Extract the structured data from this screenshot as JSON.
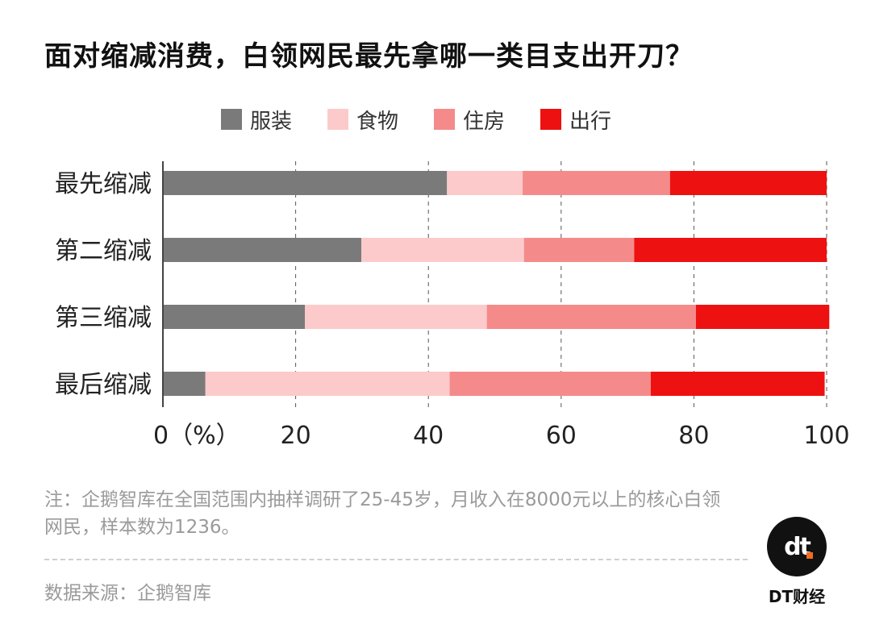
{
  "title": "面对缩减消费，白领网民最先拿哪一类目支出开刀？",
  "legend": [
    {
      "label": "服装",
      "color": "#7a7a7a"
    },
    {
      "label": "食物",
      "color": "#fccaca"
    },
    {
      "label": "住房",
      "color": "#f58a8a"
    },
    {
      "label": "出行",
      "color": "#ee1111"
    }
  ],
  "chart_data": {
    "type": "bar",
    "orientation": "horizontal",
    "stacked": true,
    "categories": [
      "最先缩减",
      "第二缩减",
      "第三缩减",
      "最后缩减"
    ],
    "series": [
      {
        "name": "服装",
        "color": "#7a7a7a",
        "values": [
          42.8,
          29.9,
          21.4,
          6.4
        ]
      },
      {
        "name": "食物",
        "color": "#fccaca",
        "values": [
          11.4,
          24.5,
          27.4,
          36.8
        ]
      },
      {
        "name": "住房",
        "color": "#f58a8a",
        "values": [
          22.2,
          16.6,
          31.5,
          30.3
        ]
      },
      {
        "name": "出行",
        "color": "#ee1111",
        "values": [
          23.6,
          29.0,
          20.1,
          26.2
        ]
      }
    ],
    "xlim": [
      0,
      100
    ],
    "xticks": [
      "0（%）",
      "20",
      "40",
      "60",
      "80",
      "100"
    ],
    "grid": true,
    "legend_position": "top"
  },
  "note": "注：企鹅智库在全国范围内抽样调研了25-45岁，月收入在8000元以上的核心白领网民，样本数为1236。",
  "source": "数据来源：企鹅智库",
  "logo": {
    "mark": "dt",
    "text": "DT财经"
  }
}
